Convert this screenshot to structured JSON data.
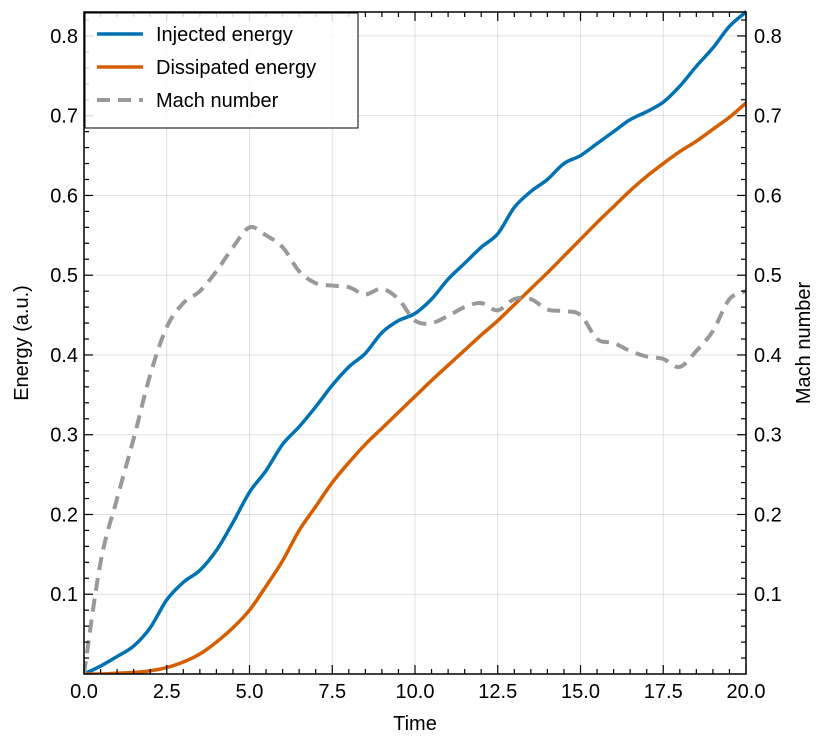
{
  "chart_data": {
    "type": "line",
    "xlabel": "Time",
    "ylabel": "Energy (a.u.)",
    "y2label": "Mach number",
    "xlim": [
      0,
      20
    ],
    "ylim": [
      0,
      0.83
    ],
    "y2lim": [
      0,
      0.83
    ],
    "grid": true,
    "legend_position": "top-left",
    "x_ticks": [
      0,
      2.5,
      5,
      7.5,
      10,
      12.5,
      15,
      17.5,
      20
    ],
    "x_tick_labels": [
      "0.0",
      "2.5",
      "5.0",
      "7.5",
      "10.0",
      "12.5",
      "15.0",
      "17.5",
      "20.0"
    ],
    "y_ticks": [
      0.1,
      0.2,
      0.3,
      0.4,
      0.5,
      0.6,
      0.7,
      0.8
    ],
    "y_tick_labels": [
      "0.1",
      "0.2",
      "0.3",
      "0.4",
      "0.5",
      "0.6",
      "0.7",
      "0.8"
    ],
    "y2_ticks": [
      0.1,
      0.2,
      0.3,
      0.4,
      0.5,
      0.6,
      0.7,
      0.8
    ],
    "y2_tick_labels": [
      "0.1",
      "0.2",
      "0.3",
      "0.4",
      "0.5",
      "0.6",
      "0.7",
      "0.8"
    ],
    "series": [
      {
        "name": "Injected energy",
        "axis": "left",
        "color": "#0072b2",
        "dash": "solid",
        "x": [
          0,
          0.5,
          1.0,
          1.5,
          2.0,
          2.5,
          3.0,
          3.5,
          4.0,
          4.5,
          5.0,
          5.5,
          6.0,
          6.5,
          7.0,
          7.5,
          8.0,
          8.5,
          9.0,
          9.5,
          10.0,
          10.5,
          11.0,
          11.5,
          12.0,
          12.5,
          13.0,
          13.5,
          14.0,
          14.5,
          15.0,
          15.5,
          16.0,
          16.5,
          17.0,
          17.5,
          18.0,
          18.5,
          19.0,
          19.5,
          20.0
        ],
        "y": [
          0,
          0.01,
          0.022,
          0.035,
          0.058,
          0.093,
          0.115,
          0.13,
          0.155,
          0.19,
          0.228,
          0.255,
          0.288,
          0.31,
          0.335,
          0.362,
          0.385,
          0.402,
          0.428,
          0.443,
          0.452,
          0.47,
          0.495,
          0.515,
          0.535,
          0.552,
          0.585,
          0.605,
          0.62,
          0.64,
          0.65,
          0.665,
          0.68,
          0.695,
          0.705,
          0.717,
          0.737,
          0.762,
          0.785,
          0.812,
          0.83
        ]
      },
      {
        "name": "Dissipated energy",
        "axis": "left",
        "color": "#d55e00",
        "dash": "solid",
        "x": [
          0,
          0.5,
          1.0,
          1.5,
          2.0,
          2.5,
          3.0,
          3.5,
          4.0,
          4.5,
          5.0,
          5.5,
          6.0,
          6.5,
          7.0,
          7.5,
          8.0,
          8.5,
          9.0,
          9.5,
          10.0,
          10.5,
          11.0,
          11.5,
          12.0,
          12.5,
          13.0,
          13.5,
          14.0,
          14.5,
          15.0,
          15.5,
          16.0,
          16.5,
          17.0,
          17.5,
          18.0,
          18.5,
          19.0,
          19.5,
          20.0
        ],
        "y": [
          0,
          0,
          0.001,
          0.002,
          0.004,
          0.008,
          0.015,
          0.025,
          0.04,
          0.058,
          0.08,
          0.11,
          0.142,
          0.18,
          0.21,
          0.24,
          0.265,
          0.288,
          0.308,
          0.328,
          0.348,
          0.368,
          0.387,
          0.406,
          0.425,
          0.443,
          0.463,
          0.483,
          0.503,
          0.524,
          0.545,
          0.566,
          0.586,
          0.606,
          0.624,
          0.64,
          0.655,
          0.668,
          0.683,
          0.698,
          0.716
        ]
      },
      {
        "name": "Mach number",
        "axis": "right",
        "color": "#999999",
        "dash": "dashed",
        "x": [
          0,
          0.5,
          1.0,
          1.5,
          2.0,
          2.5,
          3.0,
          3.5,
          4.0,
          4.5,
          5.0,
          5.5,
          6.0,
          6.5,
          7.0,
          7.5,
          8.0,
          8.5,
          9.0,
          9.5,
          10.0,
          10.5,
          11.0,
          11.5,
          12.0,
          12.5,
          13.0,
          13.5,
          14.0,
          14.5,
          15.0,
          15.5,
          16.0,
          16.5,
          17.0,
          17.5,
          18.0,
          18.5,
          19.0,
          19.5,
          20.0
        ],
        "y": [
          0,
          0.14,
          0.22,
          0.295,
          0.375,
          0.435,
          0.465,
          0.48,
          0.505,
          0.535,
          0.56,
          0.55,
          0.535,
          0.505,
          0.49,
          0.487,
          0.485,
          0.476,
          0.483,
          0.47,
          0.443,
          0.44,
          0.449,
          0.46,
          0.465,
          0.456,
          0.47,
          0.47,
          0.457,
          0.455,
          0.45,
          0.42,
          0.415,
          0.405,
          0.398,
          0.395,
          0.385,
          0.405,
          0.43,
          0.47,
          0.48
        ]
      }
    ]
  }
}
